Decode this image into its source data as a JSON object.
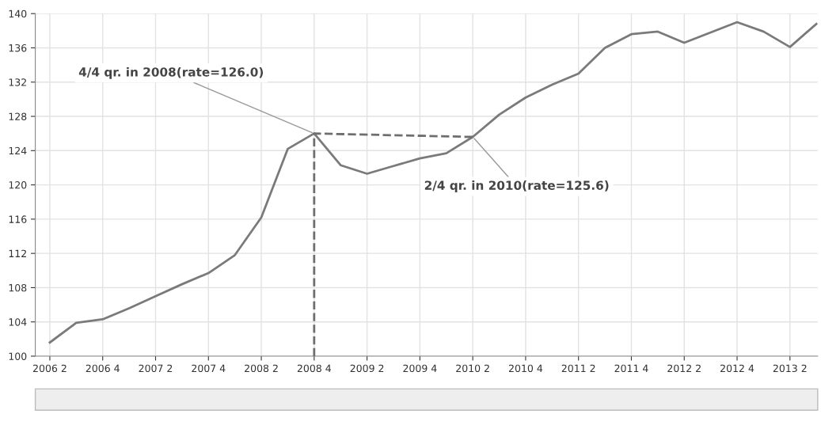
{
  "chart_data": {
    "type": "line",
    "categories": [
      "2006 2",
      null,
      "2006 4",
      null,
      "2007 2",
      null,
      "2007 4",
      null,
      "2008 2",
      null,
      "2008 4",
      null,
      "2009 2",
      null,
      "2009 4",
      null,
      "2010 2",
      null,
      "2010 4",
      null,
      "2011 2",
      null,
      "2011 4",
      null,
      "2012 2",
      null,
      "2012 4",
      null,
      "2013 2",
      null
    ],
    "series": [
      {
        "color": "#7a7a7a",
        "values": [
          101.6,
          103.9,
          104.3,
          105.6,
          107.0,
          108.4,
          109.7,
          111.8,
          116.2,
          124.2,
          126.0,
          122.3,
          121.3,
          122.2,
          123.1,
          123.7,
          125.6,
          128.2,
          130.2,
          131.7,
          133.0,
          136.0,
          137.6,
          137.9,
          136.6,
          137.8,
          139.0,
          137.9,
          136.1,
          138.8
        ]
      },
      {
        "color": "#6e6e6e",
        "line_style": "dashed",
        "x": [
          "2008 4",
          "2008 4",
          "2010 2"
        ],
        "values": [
          100,
          126.0,
          125.6
        ]
      }
    ],
    "ylim": [
      100,
      140
    ],
    "yticks": [
      100,
      104,
      108,
      112,
      116,
      120,
      124,
      128,
      132,
      136,
      140
    ],
    "grid": true,
    "marker": "none",
    "line_style": "solid",
    "annotations": [
      {
        "text": "4/4 qr. in 2008(rate=126.0)",
        "x": "2008 4",
        "y": 126.0
      },
      {
        "text": "2/4 qr. in 2010(rate=125.6)",
        "x": "2010 2",
        "y": 125.6
      }
    ]
  }
}
